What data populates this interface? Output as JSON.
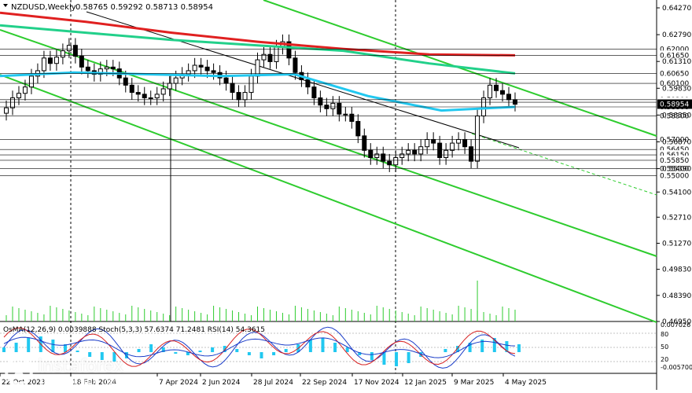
{
  "chart_data": {
    "type": "candlestick",
    "header": {
      "symbol": "NZDUSD,Weekly",
      "ohlc": "0.58765 0.59292 0.58713 0.58954"
    },
    "y_axis_labels": [
      "0.64270",
      "0.62790",
      "0.61310",
      "0.59830",
      "0.58350",
      "0.56870",
      "0.55390",
      "0.54100",
      "0.52710",
      "0.51270",
      "0.49830",
      "0.48390",
      "0.46950"
    ],
    "ylim": [
      0.4695,
      0.6427
    ],
    "price_levels": [
      {
        "label": "0.62000",
        "value": 0.62
      },
      {
        "label": "0.61650",
        "value": 0.6165
      },
      {
        "label": "0.60650",
        "value": 0.6065
      },
      {
        "label": "0.60100",
        "value": 0.601
      },
      {
        "label": "0.59200",
        "value": 0.592
      },
      {
        "label": "0.59060",
        "value": 0.5906
      },
      {
        "label": "0.58800",
        "value": 0.588
      },
      {
        "label": "0.58300",
        "value": 0.583
      },
      {
        "label": "0.57000",
        "value": 0.57
      },
      {
        "label": "0.56450",
        "value": 0.5645
      },
      {
        "label": "0.56150",
        "value": 0.5615
      },
      {
        "label": "0.55850",
        "value": 0.5585
      },
      {
        "label": "0.55400",
        "value": 0.554
      },
      {
        "label": "0.55000",
        "value": 0.55
      }
    ],
    "current_price_label": "0.58954",
    "x_axis_labels": [
      "22 Oct 2023",
      "18 Feb 2024",
      "7 Apr 2024",
      "2 Jun 2024",
      "28 Jul 2024",
      "22 Sep 2024",
      "17 Nov 2024",
      "12 Jan 2025",
      "9 Mar 2025",
      "4 May 2025"
    ],
    "candles_close": [
      0.5875,
      0.593,
      0.5955,
      0.599,
      0.605,
      0.608,
      0.615,
      0.612,
      0.6155,
      0.619,
      0.622,
      0.616,
      0.61,
      0.608,
      0.606,
      0.609,
      0.61,
      0.609,
      0.604,
      0.6,
      0.596,
      0.595,
      0.593,
      0.593,
      0.595,
      0.598,
      0.601,
      0.604,
      0.606,
      0.608,
      0.611,
      0.61,
      0.608,
      0.607,
      0.604,
      0.601,
      0.596,
      0.592,
      0.596,
      0.605,
      0.614,
      0.617,
      0.613,
      0.621,
      0.624,
      0.615,
      0.607,
      0.603,
      0.599,
      0.593,
      0.589,
      0.587,
      0.59,
      0.584,
      0.584,
      0.58,
      0.572,
      0.564,
      0.56,
      0.562,
      0.558,
      0.556,
      0.56,
      0.562,
      0.564,
      0.562,
      0.566,
      0.57,
      0.568,
      0.56,
      0.564,
      0.568,
      0.57,
      0.566,
      0.558,
      0.583,
      0.593,
      0.6,
      0.597,
      0.595,
      0.592,
      0.5895
    ],
    "mov_avg_lines": [
      {
        "color": "#e02020",
        "values": [
          0.64,
          0.635,
          0.629,
          0.624,
          0.62,
          0.617,
          0.6165
        ]
      },
      {
        "color": "#22d08a",
        "values": [
          0.633,
          0.629,
          0.625,
          0.622,
          0.619,
          0.612,
          0.6065
        ]
      },
      {
        "color": "#21c8f0",
        "values": [
          0.605,
          0.607,
          0.606,
          0.605,
          0.606,
          0.594,
          0.586,
          0.588
        ]
      }
    ],
    "channel_lines_color": "#2ecc2e",
    "volume_hint": "histogram",
    "indicator_panel": {
      "label": "OsMA(12,26,9) 0.0039888  Stoch(5,3,3) 57.6374 71.2481  RSI(14) 54.3615",
      "y_labels": [
        "0.007026",
        "80",
        "50",
        "20",
        "-0.005700"
      ],
      "levels": [
        80,
        50,
        20
      ]
    }
  },
  "watermark": {
    "brand": "instaforex",
    "tagline": "Instant Forex Trading"
  },
  "colors": {
    "bull": "#ffffff",
    "bear": "#000000",
    "grid": "#000000",
    "osma": "#21c8f0",
    "stoch_main": "#1a3cc8",
    "stoch_signal": "#d62020",
    "rsi": "#1a3cc8"
  }
}
